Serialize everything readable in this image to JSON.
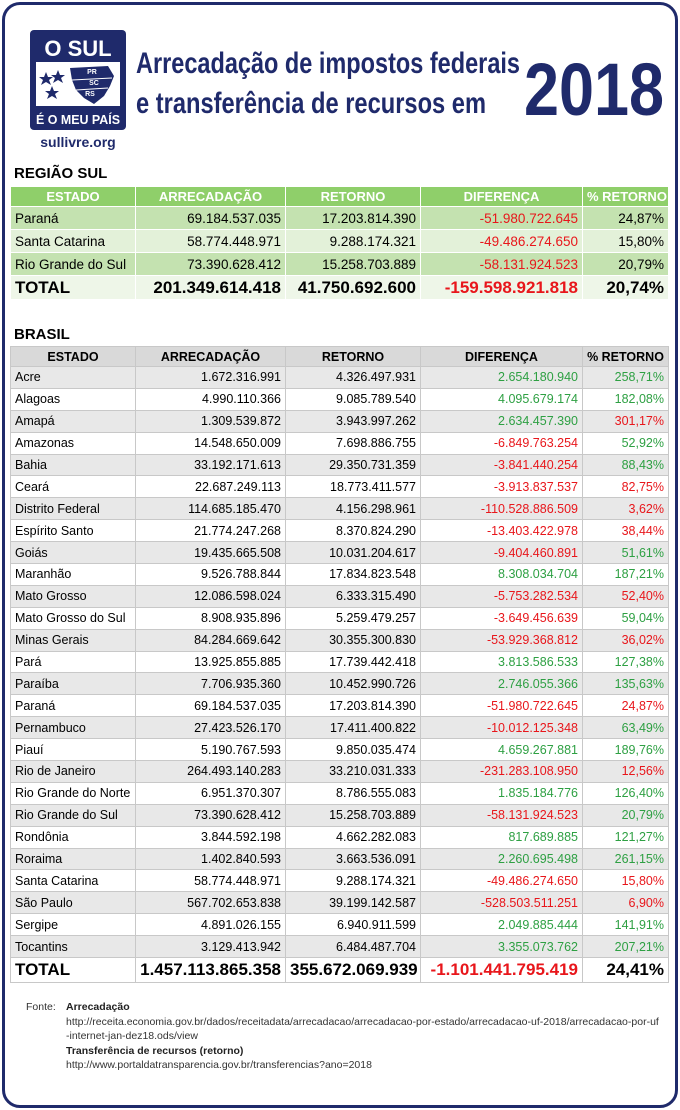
{
  "logo": {
    "line1": "O SUL",
    "states": [
      "PR",
      "SC",
      "RS"
    ],
    "line2": "É O MEU PAÍS",
    "url": "sullivre.org"
  },
  "header": {
    "title_line1": "Arrecadação de impostos federais",
    "title_line2": "e transferência de recursos em",
    "year": "2018"
  },
  "colors": {
    "pos": "#2ea043",
    "neg": "#e8161b",
    "plain": "#000000"
  },
  "regiao_sul": {
    "title": "REGIÃO SUL",
    "columns": [
      "ESTADO",
      "ARRECADAÇÃO",
      "RETORNO",
      "DIFERENÇA",
      "% RETORNO"
    ],
    "rows": [
      {
        "cells": [
          "Paraná",
          "69.184.537.035",
          "17.203.814.390",
          "-51.980.722.645",
          "24,87%"
        ],
        "dif": "neg",
        "pct": "plain"
      },
      {
        "cells": [
          "Santa Catarina",
          "58.774.448.971",
          "9.288.174.321",
          "-49.486.274.650",
          "15,80%"
        ],
        "dif": "neg",
        "pct": "plain"
      },
      {
        "cells": [
          "Rio Grande do Sul",
          "73.390.628.412",
          "15.258.703.889",
          "-58.131.924.523",
          "20,79%"
        ],
        "dif": "neg",
        "pct": "plain"
      }
    ],
    "total": {
      "cells": [
        "TOTAL",
        "201.349.614.418",
        "41.750.692.600",
        "-159.598.921.818",
        "20,74%"
      ],
      "dif": "neg",
      "pct": "plain"
    }
  },
  "brasil": {
    "title": "BRASIL",
    "columns": [
      "ESTADO",
      "ARRECADAÇÃO",
      "RETORNO",
      "DIFERENÇA",
      "% RETORNO"
    ],
    "rows": [
      {
        "cells": [
          "Acre",
          "1.672.316.991",
          "4.326.497.931",
          "2.654.180.940",
          "258,71%"
        ],
        "dif": "pos",
        "pct": "pos"
      },
      {
        "cells": [
          "Alagoas",
          "4.990.110.366",
          "9.085.789.540",
          "4.095.679.174",
          "182,08%"
        ],
        "dif": "pos",
        "pct": "pos"
      },
      {
        "cells": [
          "Amapá",
          "1.309.539.872",
          "3.943.997.262",
          "2.634.457.390",
          "301,17%"
        ],
        "dif": "pos",
        "pct": "neg"
      },
      {
        "cells": [
          "Amazonas",
          "14.548.650.009",
          "7.698.886.755",
          "-6.849.763.254",
          "52,92%"
        ],
        "dif": "neg",
        "pct": "pos"
      },
      {
        "cells": [
          "Bahia",
          "33.192.171.613",
          "29.350.731.359",
          "-3.841.440.254",
          "88,43%"
        ],
        "dif": "neg",
        "pct": "pos"
      },
      {
        "cells": [
          "Ceará",
          "22.687.249.113",
          "18.773.411.577",
          "-3.913.837.537",
          "82,75%"
        ],
        "dif": "neg",
        "pct": "neg"
      },
      {
        "cells": [
          "Distrito Federal",
          "114.685.185.470",
          "4.156.298.961",
          "-110.528.886.509",
          "3,62%"
        ],
        "dif": "neg",
        "pct": "neg"
      },
      {
        "cells": [
          "Espírito Santo",
          "21.774.247.268",
          "8.370.824.290",
          "-13.403.422.978",
          "38,44%"
        ],
        "dif": "neg",
        "pct": "neg"
      },
      {
        "cells": [
          "Goiás",
          "19.435.665.508",
          "10.031.204.617",
          "-9.404.460.891",
          "51,61%"
        ],
        "dif": "neg",
        "pct": "pos"
      },
      {
        "cells": [
          "Maranhão",
          "9.526.788.844",
          "17.834.823.548",
          "8.308.034.704",
          "187,21%"
        ],
        "dif": "pos",
        "pct": "pos"
      },
      {
        "cells": [
          "Mato Grosso",
          "12.086.598.024",
          "6.333.315.490",
          "-5.753.282.534",
          "52,40%"
        ],
        "dif": "neg",
        "pct": "neg"
      },
      {
        "cells": [
          "Mato Grosso do Sul",
          "8.908.935.896",
          "5.259.479.257",
          "-3.649.456.639",
          "59,04%"
        ],
        "dif": "neg",
        "pct": "pos"
      },
      {
        "cells": [
          "Minas Gerais",
          "84.284.669.642",
          "30.355.300.830",
          "-53.929.368.812",
          "36,02%"
        ],
        "dif": "neg",
        "pct": "neg"
      },
      {
        "cells": [
          "Pará",
          "13.925.855.885",
          "17.739.442.418",
          "3.813.586.533",
          "127,38%"
        ],
        "dif": "pos",
        "pct": "pos"
      },
      {
        "cells": [
          "Paraíba",
          "7.706.935.360",
          "10.452.990.726",
          "2.746.055.366",
          "135,63%"
        ],
        "dif": "pos",
        "pct": "pos"
      },
      {
        "cells": [
          "Paraná",
          "69.184.537.035",
          "17.203.814.390",
          "-51.980.722.645",
          "24,87%"
        ],
        "dif": "neg",
        "pct": "neg"
      },
      {
        "cells": [
          "Pernambuco",
          "27.423.526.170",
          "17.411.400.822",
          "-10.012.125.348",
          "63,49%"
        ],
        "dif": "neg",
        "pct": "pos"
      },
      {
        "cells": [
          "Piauí",
          "5.190.767.593",
          "9.850.035.474",
          "4.659.267.881",
          "189,76%"
        ],
        "dif": "pos",
        "pct": "pos"
      },
      {
        "cells": [
          "Rio de Janeiro",
          "264.493.140.283",
          "33.210.031.333",
          "-231.283.108.950",
          "12,56%"
        ],
        "dif": "neg",
        "pct": "neg"
      },
      {
        "cells": [
          "Rio Grande do Norte",
          "6.951.370.307",
          "8.786.555.083",
          "1.835.184.776",
          "126,40%"
        ],
        "dif": "pos",
        "pct": "pos"
      },
      {
        "cells": [
          "Rio Grande do Sul",
          "73.390.628.412",
          "15.258.703.889",
          "-58.131.924.523",
          "20,79%"
        ],
        "dif": "neg",
        "pct": "pos"
      },
      {
        "cells": [
          "Rondônia",
          "3.844.592.198",
          "4.662.282.083",
          "817.689.885",
          "121,27%"
        ],
        "dif": "pos",
        "pct": "pos"
      },
      {
        "cells": [
          "Roraima",
          "1.402.840.593",
          "3.663.536.091",
          "2.260.695.498",
          "261,15%"
        ],
        "dif": "pos",
        "pct": "pos"
      },
      {
        "cells": [
          "Santa Catarina",
          "58.774.448.971",
          "9.288.174.321",
          "-49.486.274.650",
          "15,80%"
        ],
        "dif": "neg",
        "pct": "neg"
      },
      {
        "cells": [
          "São Paulo",
          "567.702.653.838",
          "39.199.142.587",
          "-528.503.511.251",
          "6,90%"
        ],
        "dif": "neg",
        "pct": "neg"
      },
      {
        "cells": [
          "Sergipe",
          "4.891.026.155",
          "6.940.911.599",
          "2.049.885.444",
          "141,91%"
        ],
        "dif": "pos",
        "pct": "pos"
      },
      {
        "cells": [
          "Tocantins",
          "3.129.413.942",
          "6.484.487.704",
          "3.355.073.762",
          "207,21%"
        ],
        "dif": "pos",
        "pct": "pos"
      }
    ],
    "total": {
      "cells": [
        "TOTAL",
        "1.457.113.865.358",
        "355.672.069.939",
        "-1.101.441.795.419",
        "24,41%"
      ],
      "dif": "neg",
      "pct": "plain"
    }
  },
  "source": {
    "label": "Fonte:",
    "items": [
      {
        "title": "Arrecadação",
        "url": "http://receita.economia.gov.br/dados/receitadata/arrecadacao/arrecadacao-por-estado/arrecadacao-uf-2018/arrecadacao-por-uf-internet-jan-dez18.ods/view"
      },
      {
        "title": "Transferência de recursos (retorno)",
        "url": "http://www.portaldatransparencia.gov.br/transferencias?ano=2018"
      }
    ]
  }
}
